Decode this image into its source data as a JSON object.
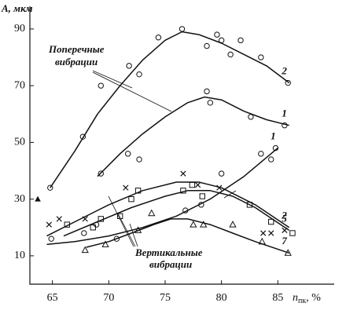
{
  "chart_data": {
    "type": "scatter",
    "ylabel": "A, мкм",
    "xlabel": {
      "text": "n",
      "subscript": "пк",
      "suffix": ", %"
    },
    "xlim": [
      63,
      90
    ],
    "ylim": [
      0,
      98
    ],
    "xticks": [
      65,
      70,
      75,
      80,
      85
    ],
    "yticks": [
      10,
      30,
      50,
      70,
      90
    ],
    "color": "#111",
    "annotations": [
      {
        "text": [
          "Поперечные",
          "вибрации"
        ]
      },
      {
        "text": [
          "Вертикальные",
          "вибрации"
        ]
      }
    ],
    "series": [
      {
        "type": "scatter",
        "marker": "circle",
        "x": [
          64.8,
          67.7,
          69.3,
          71.8,
          72.7,
          74.4,
          76.5,
          78.7,
          79.6,
          80,
          80.8,
          81.7,
          83.5,
          85.9
        ],
        "values": [
          34,
          52,
          70,
          77,
          74,
          87,
          90,
          84,
          88,
          86,
          81,
          86,
          80,
          71
        ]
      },
      {
        "type": "scatter",
        "marker": "circle",
        "x": [
          69.3,
          71.7,
          72.7,
          78.7,
          79,
          82.6,
          85.6
        ],
        "values": [
          39,
          46,
          44,
          68,
          64,
          59,
          56
        ]
      },
      {
        "type": "scatter",
        "marker": "circle",
        "x": [
          64.9,
          67.8,
          68.9,
          70.7,
          76.8,
          78.2,
          80,
          83.5,
          84.4,
          84.8
        ],
        "values": [
          16,
          18,
          21,
          16,
          26,
          28,
          39,
          46,
          44,
          48
        ]
      },
      {
        "type": "scatter",
        "marker": "cross",
        "x": [
          64.7,
          65.6,
          67.9,
          71.5,
          76.6,
          77.9,
          79.8,
          83.7,
          84.4,
          85.6
        ],
        "values": [
          21,
          23,
          23,
          34,
          39,
          35,
          34,
          18,
          18,
          19
        ]
      },
      {
        "type": "scatter",
        "marker": "square",
        "x": [
          66.3,
          68.6,
          69.3,
          71,
          72,
          72.6,
          76.6,
          77.4,
          78.3,
          82.5,
          84.4,
          86.3
        ],
        "values": [
          21,
          20,
          23,
          24,
          30,
          33,
          33,
          35,
          31,
          28,
          22,
          18
        ]
      },
      {
        "type": "scatter",
        "marker": "triangle",
        "x": [
          67.9,
          69.7,
          72.6,
          73.8,
          77.5,
          78.4,
          81,
          83.6,
          85.9
        ],
        "values": [
          12,
          14,
          19,
          25,
          21,
          21,
          21,
          15,
          11
        ]
      },
      {
        "type": "scatter",
        "marker": "triangle-filled",
        "x": [
          63.7
        ],
        "values": [
          30
        ]
      },
      {
        "type": "line",
        "name": "2",
        "x": [
          64.8,
          67,
          69,
          71,
          73,
          75,
          76.5,
          78,
          80,
          82,
          84,
          86
        ],
        "values": [
          34,
          47,
          60,
          70,
          79,
          86,
          89,
          88,
          85,
          81,
          77,
          71
        ]
      },
      {
        "type": "line",
        "name": "1",
        "x": [
          69,
          71,
          73,
          75,
          77,
          78.5,
          80,
          82,
          84,
          86
        ],
        "values": [
          38,
          46,
          53,
          59,
          64,
          66,
          65,
          61,
          58,
          56
        ]
      },
      {
        "type": "line",
        "name": "1",
        "x": [
          64.5,
          67,
          70,
          73,
          76,
          79,
          82,
          85
        ],
        "values": [
          14,
          15,
          17,
          20,
          24,
          30,
          38,
          48
        ]
      },
      {
        "type": "line",
        "name": "2",
        "x": [
          64.5,
          67,
          70,
          73,
          76,
          78,
          80,
          83,
          86
        ],
        "values": [
          17,
          22,
          28,
          33,
          36,
          36,
          34,
          28,
          20
        ]
      },
      {
        "type": "line",
        "name": "5",
        "x": [
          66,
          69,
          72,
          75,
          77,
          79,
          81,
          83,
          86
        ],
        "values": [
          17,
          22,
          27,
          31,
          33,
          33,
          31,
          27,
          19
        ]
      },
      {
        "type": "line",
        "name": "7",
        "x": [
          68,
          70,
          72,
          74,
          75.5,
          77,
          79,
          81,
          83,
          86
        ],
        "values": [
          13,
          15,
          18,
          21,
          23,
          23,
          21,
          18,
          15,
          11
        ]
      }
    ]
  }
}
